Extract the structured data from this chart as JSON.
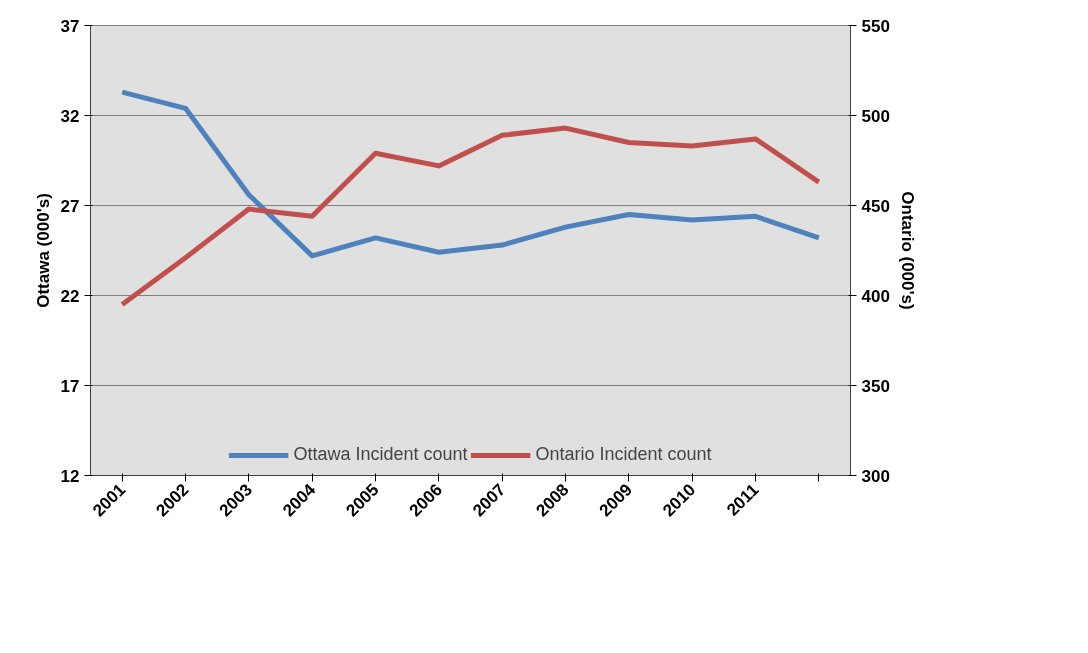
{
  "chart_data": {
    "type": "line",
    "ylabel": "Ottawa (000's)",
    "y2label": "Ontario (000's)",
    "categories": [
      "2001",
      "2002",
      "2003",
      "2004",
      "2005",
      "2006",
      "2007",
      "2008",
      "2009",
      "2010",
      "2011",
      null
    ],
    "series": [
      {
        "name": "Ottawa Incident count",
        "color": "#4f81bd",
        "values": [
          33.3,
          32.4,
          27.6,
          24.2,
          25.2,
          24.4,
          24.8,
          25.8,
          26.5,
          26.2,
          26.4,
          25.2
        ]
      },
      {
        "name": "Ontario Incident count",
        "color": "#c0504d",
        "axis": "y2",
        "values": [
          395,
          421,
          448,
          444,
          479,
          472,
          489,
          493,
          485,
          483,
          487,
          463
        ]
      }
    ],
    "ylim": [
      12,
      37
    ],
    "yticks": [
      12,
      17,
      22,
      27,
      32,
      37
    ],
    "y2lim": [
      300,
      550
    ],
    "y2ticks": [
      300,
      350,
      400,
      450,
      500,
      550
    ],
    "grid": "y",
    "legend": "bottom",
    "marker": "none",
    "line_style": "solid"
  }
}
